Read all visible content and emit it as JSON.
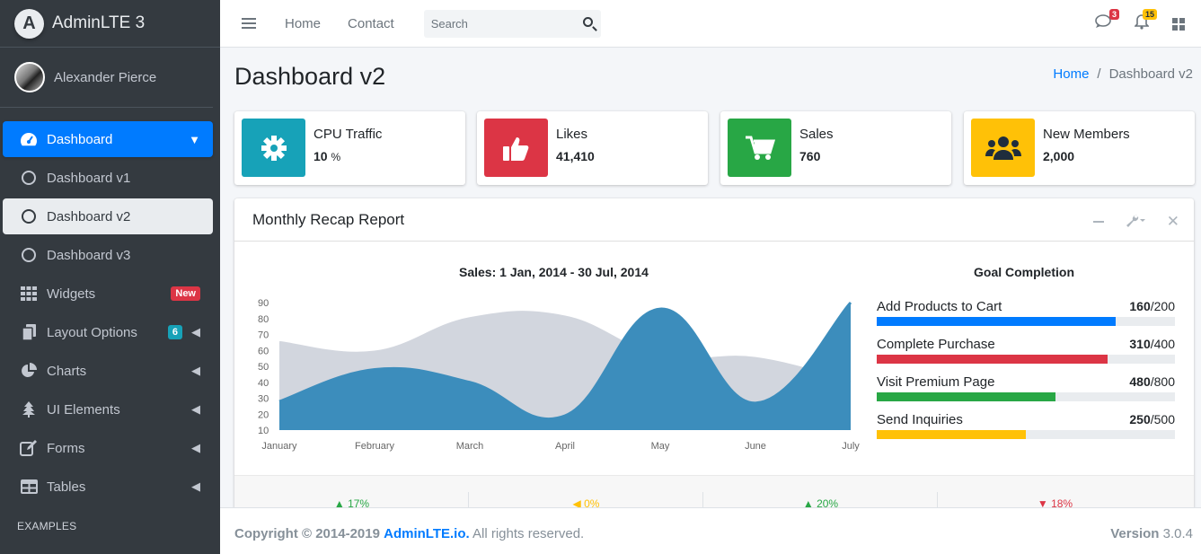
{
  "brand": {
    "logo_letter": "A",
    "name": "AdminLTE 3"
  },
  "user": {
    "name": "Alexander Pierce"
  },
  "sidebar": {
    "items": [
      {
        "label": "Dashboard",
        "icon": "tachometer-icon"
      },
      {
        "label": "Dashboard v1",
        "icon": "circle-icon"
      },
      {
        "label": "Dashboard v2",
        "icon": "circle-icon"
      },
      {
        "label": "Dashboard v3",
        "icon": "circle-icon"
      },
      {
        "label": "Widgets",
        "icon": "th-icon",
        "badge": "New"
      },
      {
        "label": "Layout Options",
        "icon": "copy-icon",
        "badge": "6"
      },
      {
        "label": "Charts",
        "icon": "pie-chart-icon"
      },
      {
        "label": "UI Elements",
        "icon": "tree-icon"
      },
      {
        "label": "Forms",
        "icon": "edit-icon"
      },
      {
        "label": "Tables",
        "icon": "table-icon"
      }
    ],
    "header": "EXAMPLES"
  },
  "topbar": {
    "links": [
      "Home",
      "Contact"
    ],
    "search_placeholder": "Search",
    "messages_count": "3",
    "notifications_count": "15"
  },
  "page": {
    "title": "Dashboard v2",
    "breadcrumb": [
      "Home",
      "Dashboard v2"
    ]
  },
  "info_boxes": [
    {
      "label": "CPU Traffic",
      "value": "10",
      "unit": "%",
      "color": "#17a2b8",
      "icon": "gear-icon"
    },
    {
      "label": "Likes",
      "value": "41,410",
      "color": "#dc3545",
      "icon": "thumbs-up-icon"
    },
    {
      "label": "Sales",
      "value": "760",
      "color": "#28a745",
      "icon": "shopping-cart-icon"
    },
    {
      "label": "New Members",
      "value": "2,000",
      "color": "#ffc107",
      "icon": "users-icon"
    }
  ],
  "report": {
    "title": "Monthly Recap Report",
    "goal_title": "Goal Completion",
    "goals": [
      {
        "label": "Add Products to Cart",
        "value": "160",
        "total": "/200",
        "fraction": 0.8,
        "color": "#007bff"
      },
      {
        "label": "Complete Purchase",
        "value": "310",
        "total": "/400",
        "fraction": 0.775,
        "color": "#dc3545"
      },
      {
        "label": "Visit Premium Page",
        "value": "480",
        "total": "/800",
        "fraction": 0.6,
        "color": "#28a745"
      },
      {
        "label": "Send Inquiries",
        "value": "250",
        "total": "/500",
        "fraction": 0.5,
        "color": "#ffc107"
      }
    ],
    "footer_stats": [
      {
        "text": "▲ 17%",
        "color": "#28a745"
      },
      {
        "text": "◀ 0%",
        "color": "#ffc107"
      },
      {
        "text": "▲ 20%",
        "color": "#28a745"
      },
      {
        "text": "▼ 18%",
        "color": "#dc3545"
      }
    ]
  },
  "chart_data": {
    "type": "area",
    "title": "Sales: 1 Jan, 2014 - 30 Jul, 2014",
    "categories": [
      "January",
      "February",
      "March",
      "April",
      "May",
      "June",
      "July"
    ],
    "ylim": [
      10,
      90
    ],
    "yticks": [
      90,
      80,
      70,
      60,
      50,
      40,
      30,
      20,
      10
    ],
    "series": [
      {
        "values": [
          65,
          59,
          80,
          81,
          56,
          55,
          40
        ],
        "color": "#d2d6de"
      },
      {
        "values": [
          28,
          48,
          40,
          19,
          86,
          27,
          90
        ],
        "color": "#3c8dbc"
      }
    ],
    "grid": false
  },
  "footer": {
    "copyright": "Copyright © 2014-2019",
    "brand": "AdminLTE.io.",
    "rights": "All rights reserved.",
    "version_label": "Version",
    "version": "3.0.4"
  }
}
